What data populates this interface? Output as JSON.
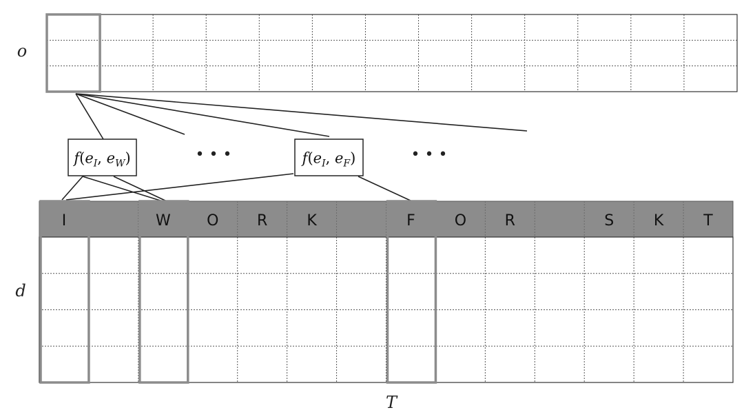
{
  "axis_labels": {
    "output": "o",
    "input": "d",
    "time": "T"
  },
  "sequence": {
    "characters": [
      "I",
      "",
      "W",
      "O",
      "R",
      "K",
      "",
      "F",
      "O",
      "R",
      "",
      "S",
      "K",
      "T"
    ],
    "highlighted_indices": [
      0,
      2,
      7
    ]
  },
  "output_grid": {
    "rows": 3,
    "cols": 13,
    "highlighted_cell": {
      "row_span": 3,
      "col": 0
    }
  },
  "input_grid": {
    "rows": 4,
    "cols": 14
  },
  "functions": [
    {
      "name": "f",
      "args": [
        {
          "base": "e",
          "sub": "I"
        },
        {
          "base": "e",
          "sub": "W"
        }
      ]
    },
    {
      "name": "f",
      "args": [
        {
          "base": "e",
          "sub": "I"
        },
        {
          "base": "e",
          "sub": "F"
        }
      ]
    }
  ],
  "ellipsis": "• • •",
  "colors": {
    "header_fill": "#8c8c8c",
    "highlight_stroke": "#8c8c8c",
    "grid_stroke": "#555555",
    "line": "#222222"
  }
}
